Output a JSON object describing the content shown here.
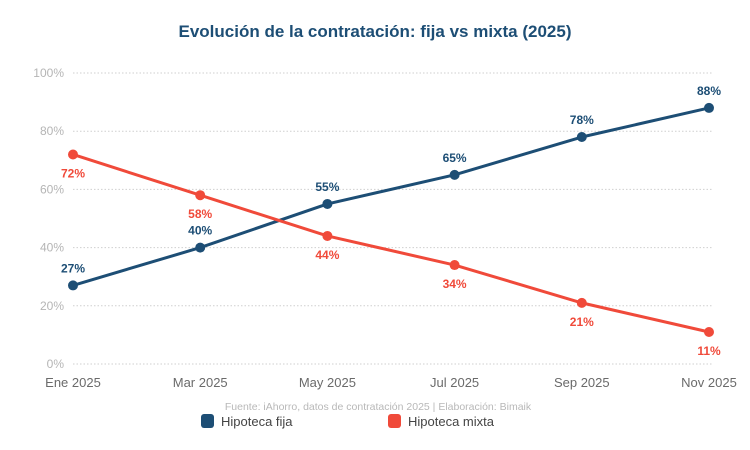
{
  "chart_data": {
    "type": "line",
    "title": "Evolución de la contratación: fija vs mixta (2025)",
    "xlabel": "",
    "ylabel": "",
    "categories": [
      "Ene 2025",
      "Mar 2025",
      "May 2025",
      "Jul 2025",
      "Sep 2025",
      "Nov 2025"
    ],
    "ylim": [
      0,
      100
    ],
    "yticks": [
      0,
      20,
      40,
      60,
      80,
      100
    ],
    "ytick_labels": [
      "0%",
      "20%",
      "40%",
      "60%",
      "80%",
      "100%"
    ],
    "grid": true,
    "legend_position": "bottom",
    "series": [
      {
        "name": "Hipoteca fija",
        "color": "#1d4e75",
        "values": [
          27,
          40,
          55,
          65,
          78,
          88
        ],
        "labels": [
          "27%",
          "40%",
          "55%",
          "65%",
          "78%",
          "88%"
        ],
        "label_position": "above"
      },
      {
        "name": "Hipoteca mixta",
        "color": "#f04a3a",
        "values": [
          72,
          58,
          44,
          34,
          21,
          11
        ],
        "labels": [
          "72%",
          "58%",
          "44%",
          "34%",
          "21%",
          "11%"
        ],
        "label_position": "below"
      }
    ],
    "source_note": "Fuente: iAhorro, datos de contratación 2025 | Elaboración: Bimaik"
  }
}
